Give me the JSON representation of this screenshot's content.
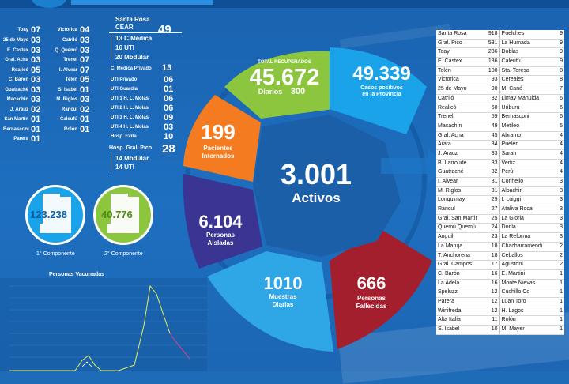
{
  "colors": {
    "background": "#1e6bb8",
    "recovered": "#8cc63f",
    "positives": "#1aa3e8",
    "internados": "#f47b20",
    "aisladas": "#3a3592",
    "muestras": "#2fa6e6",
    "fallecidas": "#a31f2d",
    "activos_center": "#1b5fa8"
  },
  "city_counts": [
    {
      "name": "Toay",
      "value": "07"
    },
    {
      "name": "Victorica",
      "value": "04"
    },
    {
      "name": "25 de Mayo",
      "value": "03"
    },
    {
      "name": "Catriló",
      "value": "03"
    },
    {
      "name": "E. Castex",
      "value": "03"
    },
    {
      "name": "Q. Quemú",
      "value": "03"
    },
    {
      "name": "Gral. Acha",
      "value": "03"
    },
    {
      "name": "Trenel",
      "value": "07"
    },
    {
      "name": "Realicó",
      "value": "05"
    },
    {
      "name": "I. Alvear",
      "value": "07"
    },
    {
      "name": "C. Barón",
      "value": "03"
    },
    {
      "name": "Telén",
      "value": "05"
    },
    {
      "name": "Guatrachè",
      "value": "03"
    },
    {
      "name": "S. Isabel",
      "value": "01"
    },
    {
      "name": "Macachín",
      "value": "03"
    },
    {
      "name": "M. Riglos",
      "value": "03"
    },
    {
      "name": "J. Arauz",
      "value": "02"
    },
    {
      "name": "Rancul",
      "value": "02"
    },
    {
      "name": "San Martín",
      "value": "01"
    },
    {
      "name": "Caleufú",
      "value": "01"
    },
    {
      "name": "Bernasconi",
      "value": "01"
    },
    {
      "name": "Rolón",
      "value": "01"
    },
    {
      "name": "Parera",
      "value": "01"
    }
  ],
  "santa_rosa": {
    "title": "Santa Rosa",
    "subtitle": "CEAR",
    "total": "49",
    "items": [
      "13 C.Médica",
      "16 UTI",
      "20 Modular"
    ]
  },
  "cm_privado": {
    "label": "C. Médica Privado",
    "value": "13"
  },
  "uti_rows": [
    {
      "label": "UTI Privado",
      "value": "06"
    },
    {
      "label": "UTI Guardia",
      "value": "01"
    },
    {
      "label": "UTI 1 H. L. Molas",
      "value": "06"
    },
    {
      "label": "UTI 2 H. L. Molas",
      "value": "06"
    },
    {
      "label": "UTI 3 H. L. Molas",
      "value": "09"
    },
    {
      "label": "UTI 4 H. L. Molas",
      "value": "03"
    },
    {
      "label": "Hosp. Evita",
      "value": "10"
    }
  ],
  "gral_pico": {
    "title": "Hosp. Gral. Pico",
    "total": "28",
    "items": [
      "14 Modular",
      "14 UTI"
    ]
  },
  "components": [
    {
      "value": "123.238",
      "label": "1° Componente"
    },
    {
      "value": "40.776",
      "label": "2° Componente"
    }
  ],
  "vaccinated_chart": {
    "title": "Personas Vacunadas"
  },
  "ring": {
    "recovered": {
      "title": "TOTAL RECUPERADOS",
      "value": "45.672",
      "daily_label": "Diarios",
      "daily": "300"
    },
    "positives": {
      "value": "49.339",
      "label1": "Casos positivos",
      "label2": "en la Provincia"
    },
    "internados": {
      "value": "199",
      "label1": "Pacientes",
      "label2": "Internados"
    },
    "aisladas": {
      "value": "6.104",
      "label1": "Personas",
      "label2": "Aisladas"
    },
    "muestras": {
      "value": "1010",
      "label1": "Muestras",
      "label2": "Diarias"
    },
    "fallecidas": {
      "value": "666",
      "label1": "Personas",
      "label2": "Fallecidas"
    },
    "activos": {
      "value": "3.001",
      "label": "Activos"
    }
  },
  "table": [
    [
      "Santa Rosa",
      "918",
      "Puelches",
      "9"
    ],
    [
      "Gral. Pico",
      "531",
      "La Humada",
      "9"
    ],
    [
      "Toay",
      "236",
      "Doblas",
      "9"
    ],
    [
      "E. Castex",
      "136",
      "Caleufú",
      "9"
    ],
    [
      "Telén",
      "100",
      "Sta. Teresa",
      "8"
    ],
    [
      "Victorica",
      "93",
      "Cereales",
      "8"
    ],
    [
      "25 de Mayo",
      "90",
      "M. Cané",
      "7"
    ],
    [
      "Catriló",
      "82",
      "Limay Mahuida",
      "6"
    ],
    [
      "Realicó",
      "60",
      "Uriburu",
      "6"
    ],
    [
      "Trenel",
      "59",
      "Bernasconi",
      "6"
    ],
    [
      "Macachín",
      "49",
      "Metileo",
      "5"
    ],
    [
      "Gral. Acha",
      "45",
      "Abramo",
      "4"
    ],
    [
      "Arata",
      "34",
      "Puelén",
      "4"
    ],
    [
      "J. Arauz",
      "33",
      "Sarah",
      "4"
    ],
    [
      "B. Larroude",
      "33",
      "Vertiz",
      "4"
    ],
    [
      "Guatraché",
      "32",
      "Perú",
      "4"
    ],
    [
      "I. Alvear",
      "31",
      "Conhello",
      "3"
    ],
    [
      "M. Riglos",
      "31",
      "Alpachiri",
      "3"
    ],
    [
      "Lonquimay",
      "29",
      "I. Luiggi",
      "3"
    ],
    [
      "Rancul",
      "27",
      "Ataliva Roca",
      "3"
    ],
    [
      "Gral. San Martín",
      "25",
      "La Gloria",
      "3"
    ],
    [
      "Quemú Quemú",
      "24",
      "Dorila",
      "3"
    ],
    [
      "Anguil",
      "23",
      "La Reforma",
      "3"
    ],
    [
      "La Maruja",
      "18",
      "Chacharramendi",
      "2"
    ],
    [
      "T. Anchorena",
      "18",
      "Ceballos",
      "2"
    ],
    [
      "Gral. Campos",
      "17",
      "Agustoni",
      "2"
    ],
    [
      "C. Barón",
      "16",
      "E. Martini",
      "1"
    ],
    [
      "La Adela",
      "16",
      "Monte Nievas",
      "1"
    ],
    [
      "Speluzzi",
      "12",
      "Cuchillo Co",
      "1"
    ],
    [
      "Parera",
      "12",
      "Luan Toro",
      "1"
    ],
    [
      "Winifreda",
      "12",
      "H. Lagos",
      "1"
    ],
    [
      "Alta Italia",
      "11",
      "Rolón",
      "1"
    ],
    [
      "S. Isabel",
      "10",
      "M. Mayer",
      "1"
    ]
  ]
}
